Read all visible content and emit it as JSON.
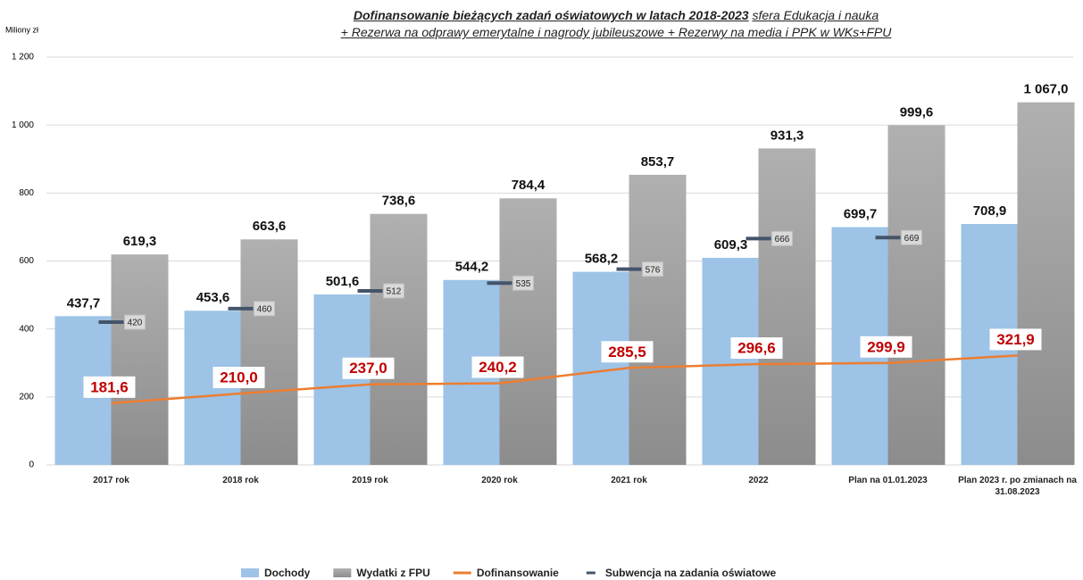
{
  "chart_data": {
    "type": "bar",
    "title": {
      "bold": "Dofinansowanie bieżących zadań oświatowych w latach 2018-2023",
      "rest": "sfera Edukacja i nauka",
      "line2": "+ Rezerwa na odprawy emerytalne i nagrody jubileuszowe + Rezerwy na media i PPK w WKs+FPU"
    },
    "y_label": "Miliony zł",
    "categories": [
      "2017 rok",
      "2018 rok",
      "2019 rok",
      "2020 rok",
      "2021 rok",
      "2022",
      "Plan na 01.01.2023",
      "Plan 2023 r. po zmianach na 31.08.2023"
    ],
    "series": [
      {
        "name": "Dochody",
        "type": "bar",
        "color": "#9dc3e6",
        "values": [
          437.7,
          453.6,
          501.6,
          544.2,
          568.2,
          609.3,
          699.7,
          708.9
        ],
        "value_labels": [
          "437,7",
          "453,6",
          "501,6",
          "544,2",
          "568,2",
          "609,3",
          "699,7",
          "708,9"
        ]
      },
      {
        "name": "Wydatki z FPU",
        "type": "bar",
        "color": "#a6a6a6",
        "values": [
          619.3,
          663.6,
          738.6,
          784.4,
          853.7,
          931.3,
          999.6,
          1067.0
        ],
        "value_labels": [
          "619,3",
          "663,6",
          "738,6",
          "784,4",
          "853,7",
          "931,3",
          "999,6",
          "1 067,0"
        ]
      },
      {
        "name": "Dofinansowanie",
        "type": "line",
        "color": "#ed7d31",
        "values": [
          181.6,
          210.0,
          237.0,
          240.2,
          285.5,
          296.6,
          299.9,
          321.9
        ],
        "value_labels": [
          "181,6",
          "210,0",
          "237,0",
          "240,2",
          "285,5",
          "296,6",
          "299,9",
          "321,9"
        ]
      },
      {
        "name": "Subwencja na zadania oświatowe",
        "type": "marker",
        "color": "#44546a",
        "values": [
          420,
          460,
          512,
          535,
          576,
          666,
          669,
          null
        ]
      }
    ],
    "ylim": [
      0,
      1200
    ],
    "yticks": [
      0,
      200,
      400,
      600,
      800,
      {
        "value": 1000,
        "label": "1 000"
      },
      {
        "value": 1200,
        "label": "1 200"
      }
    ],
    "grid": true,
    "legend": "bottom"
  }
}
